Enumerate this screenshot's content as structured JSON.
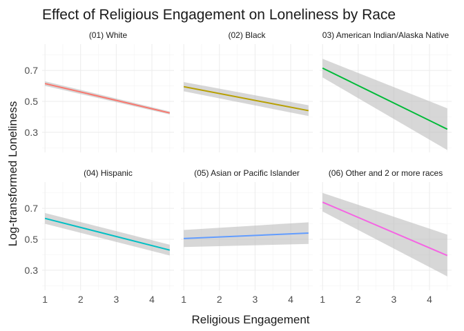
{
  "chart_data": {
    "type": "line",
    "title": "Effect of Religious Engagement on Loneliness by Race",
    "xlabel": "Religious Engagement",
    "ylabel": "Log-transformed Loneliness",
    "xlim": [
      0.92,
      4.62
    ],
    "ylim": [
      0.17,
      0.87
    ],
    "x_ticks": [
      "1",
      "2",
      "3",
      "4"
    ],
    "y_ticks": [
      "0.3",
      "0.5",
      "0.7"
    ],
    "y_tick_values": [
      0.3,
      0.5,
      0.7
    ],
    "x_tick_values": [
      1,
      2,
      3,
      4
    ],
    "grid": true,
    "legend": "none",
    "facet_rows": 2,
    "facet_cols": 3,
    "panels": [
      {
        "label": "(01) White",
        "color": "#F8766D",
        "x": [
          1,
          4.5
        ],
        "y": [
          0.615,
          0.425
        ],
        "lower": [
          0.6,
          0.415
        ],
        "upper": [
          0.63,
          0.435
        ]
      },
      {
        "label": "(02) Black",
        "color": "#B79F00",
        "x": [
          1,
          4.5
        ],
        "y": [
          0.595,
          0.44
        ],
        "lower": [
          0.565,
          0.405
        ],
        "upper": [
          0.625,
          0.475
        ]
      },
      {
        "label": "03) American Indian/Alaska Native",
        "color": "#00BA38",
        "x": [
          1,
          4.5
        ],
        "y": [
          0.715,
          0.32
        ],
        "lower": [
          0.655,
          0.185
        ],
        "upper": [
          0.775,
          0.455
        ]
      },
      {
        "label": "(04) Hispanic",
        "color": "#00BFC4",
        "x": [
          1,
          4.5
        ],
        "y": [
          0.635,
          0.43
        ],
        "lower": [
          0.6,
          0.395
        ],
        "upper": [
          0.67,
          0.465
        ]
      },
      {
        "label": "(05) Asian or Pacific Islander",
        "color": "#619CFF",
        "x": [
          1,
          4.5
        ],
        "y": [
          0.505,
          0.54
        ],
        "lower": [
          0.45,
          0.47
        ],
        "upper": [
          0.56,
          0.61
        ]
      },
      {
        "label": "(06) Other and 2 or more races",
        "color": "#F564E3",
        "x": [
          1,
          4.5
        ],
        "y": [
          0.74,
          0.395
        ],
        "lower": [
          0.68,
          0.26
        ],
        "upper": [
          0.8,
          0.53
        ]
      }
    ]
  }
}
